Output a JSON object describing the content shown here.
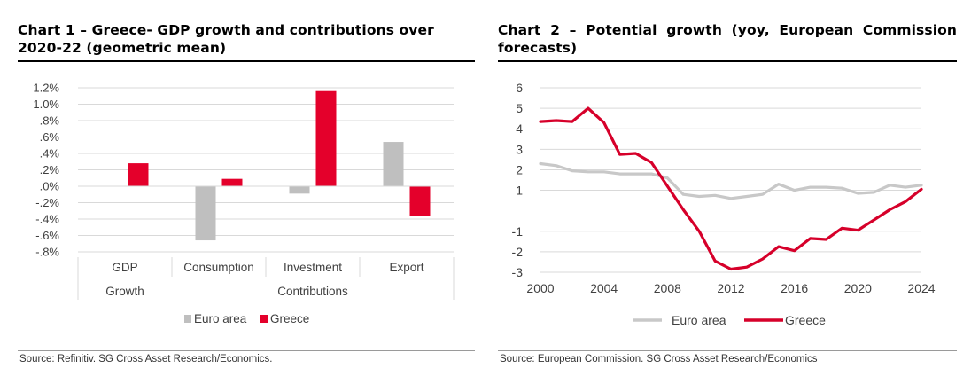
{
  "charts": [
    {
      "title": "Chart 1 – Greece- GDP growth and contributions over 2020-22 (geometric mean)",
      "source": "Source: Refinitiv. SG Cross Asset Research/Economics.",
      "group_labels": [
        "Growth",
        "Contributions"
      ]
    },
    {
      "title": "Chart 2 – Potential growth (yoy, European Commission forecasts)",
      "source": "Source: European Commission. SG Cross Asset Research/Economics"
    }
  ],
  "chart_data": [
    {
      "type": "bar",
      "categories": [
        "GDP",
        "Consumption",
        "Investment",
        "Export"
      ],
      "series": [
        {
          "name": "Euro area",
          "color": "#bfbfbf",
          "values": [
            0.0,
            -0.66,
            -0.09,
            0.54
          ]
        },
        {
          "name": "Greece",
          "color": "#e4002b",
          "values": [
            0.28,
            0.09,
            1.16,
            -0.36
          ]
        }
      ],
      "ylim": [
        -0.8,
        1.2
      ],
      "yticks": [
        1.2,
        1.0,
        0.8,
        0.6,
        0.4,
        0.2,
        0.0,
        -0.2,
        -0.4,
        -0.6,
        -0.8
      ],
      "ytick_labels": [
        "1.2%",
        "1.0%",
        ".8%",
        ".6%",
        ".4%",
        ".2%",
        ".0%",
        "-.2%",
        "-.4%",
        "-.6%",
        "-.8%"
      ],
      "grid": true,
      "legend": "bottom"
    },
    {
      "type": "line",
      "x": [
        2000,
        2001,
        2002,
        2003,
        2004,
        2005,
        2006,
        2007,
        2008,
        2009,
        2010,
        2011,
        2012,
        2013,
        2014,
        2015,
        2016,
        2017,
        2018,
        2019,
        2020,
        2021,
        2022,
        2023,
        2024
      ],
      "series": [
        {
          "name": "Euro area",
          "color": "#c8c8c8",
          "values": [
            2.3,
            2.2,
            1.95,
            1.9,
            1.9,
            1.8,
            1.8,
            1.8,
            1.6,
            0.8,
            0.7,
            0.75,
            0.6,
            0.7,
            0.8,
            1.3,
            1.0,
            1.15,
            1.15,
            1.1,
            0.85,
            0.9,
            1.25,
            1.15,
            1.25
          ]
        },
        {
          "name": "Greece",
          "color": "#d6002a",
          "values": [
            4.35,
            4.4,
            4.35,
            5.0,
            4.3,
            2.75,
            2.8,
            2.35,
            1.2,
            0.05,
            -1.0,
            -2.45,
            -2.85,
            -2.75,
            -2.35,
            -1.75,
            -1.95,
            -1.35,
            -1.4,
            -0.85,
            -0.95,
            -0.45,
            0.05,
            0.45,
            1.05
          ]
        }
      ],
      "ylim": [
        -3,
        6
      ],
      "yticks": [
        6,
        5,
        4,
        3,
        2,
        1,
        -1,
        -2,
        -3
      ],
      "xticks": [
        2000,
        2004,
        2008,
        2012,
        2016,
        2020,
        2024
      ],
      "grid": true,
      "legend": "bottom"
    }
  ]
}
